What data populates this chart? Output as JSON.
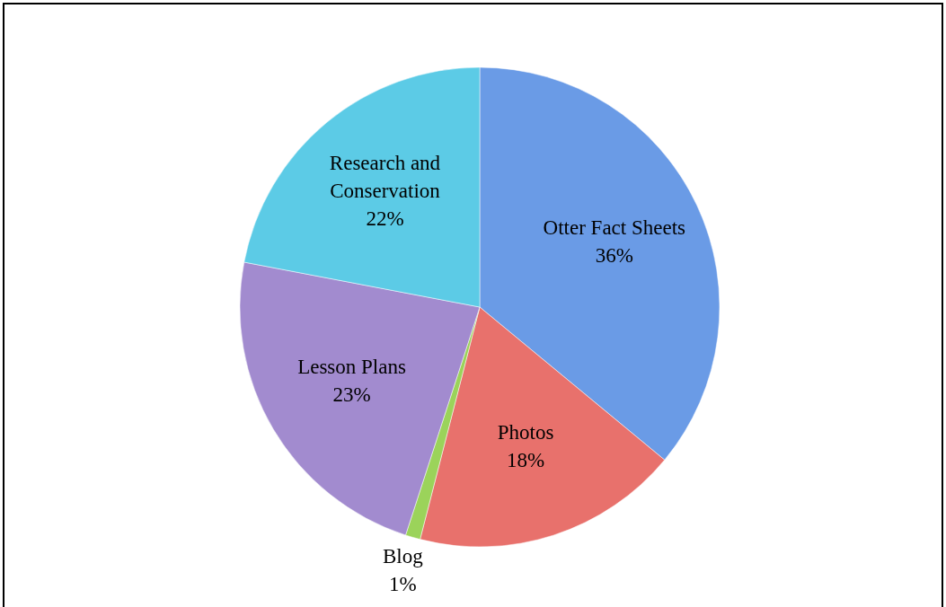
{
  "chart_data": {
    "type": "pie",
    "categories": [
      "Otter Fact Sheets",
      "Photos",
      "Blog",
      "Lesson Plans",
      "Research and Conservation"
    ],
    "values": [
      36,
      18,
      1,
      23,
      22
    ],
    "colors": [
      "#6a9be6",
      "#e8716c",
      "#9bd35a",
      "#a28bcf",
      "#5ccbe6"
    ],
    "value_labels": [
      "36%",
      "18%",
      "1%",
      "23%",
      "22%"
    ]
  }
}
